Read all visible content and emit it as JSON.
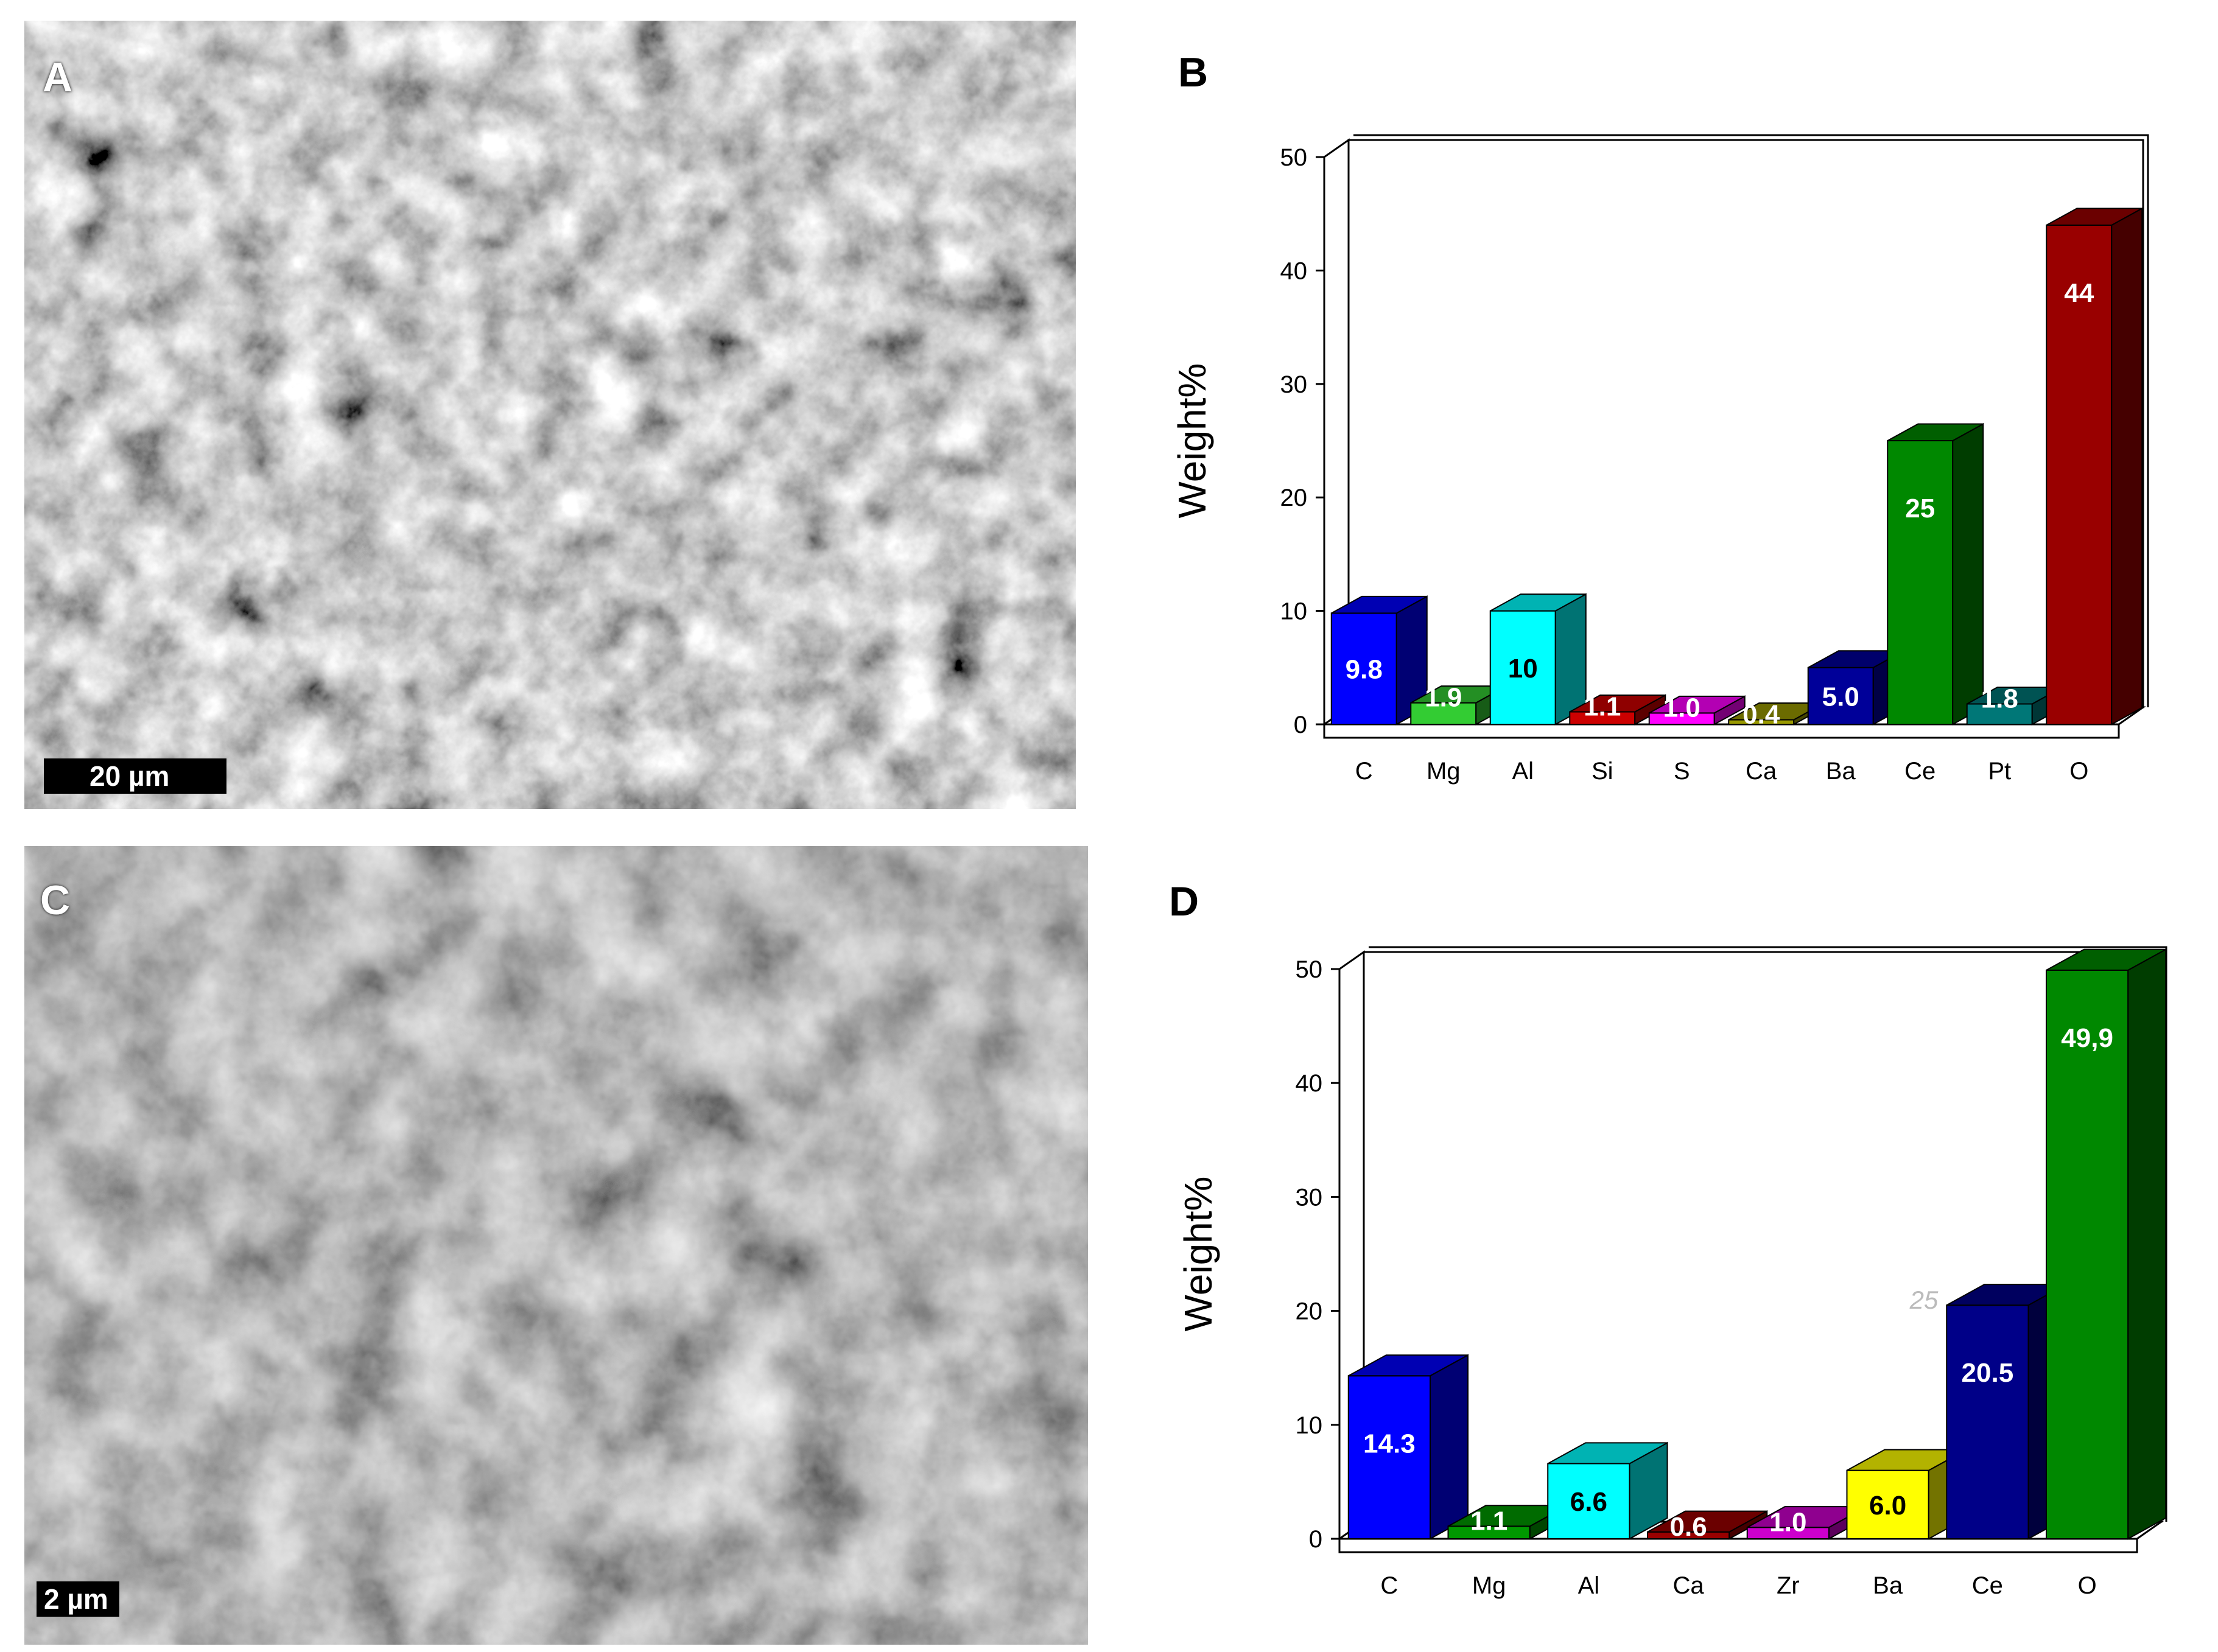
{
  "panels": {
    "A": {
      "label": "A",
      "scale_bar": "20 µm"
    },
    "B": {
      "label": "B"
    },
    "C": {
      "label": "C",
      "scale_bar": "2 µm"
    },
    "D": {
      "label": "D"
    }
  },
  "chart_data": [
    {
      "type": "bar",
      "panel": "B",
      "ylabel": "Weight%",
      "ylim": [
        0,
        50
      ],
      "yticks": [
        "0",
        "10",
        "20",
        "30",
        "40",
        "50"
      ],
      "categories": [
        "C",
        "Mg",
        "Al",
        "Si",
        "S",
        "Ca",
        "Ba",
        "Ce",
        "Pt",
        "O"
      ],
      "values": [
        9.8,
        1.9,
        10,
        1.1,
        1.0,
        0.4,
        5.0,
        25,
        1.8,
        44
      ],
      "data_labels": [
        "9.8",
        "1.9",
        "10",
        "1.1",
        "1.0",
        "0.4",
        "5.0",
        "25",
        "1.8",
        "44"
      ],
      "colors": [
        "#0000ff",
        "#33cc33",
        "#00ffff",
        "#cc0000",
        "#ff00ff",
        "#999900",
        "#000099",
        "#008800",
        "#007777",
        "#990000"
      ],
      "label_colors": [
        "#ffffff",
        "#ffffff",
        "#000000",
        "#ffffff",
        "#ffffff",
        "#ffffff",
        "#ffffff",
        "#ffffff",
        "#ffffff",
        "#ffffff"
      ]
    },
    {
      "type": "bar",
      "panel": "D",
      "ylabel": "Weight%",
      "ylim": [
        0,
        50
      ],
      "yticks": [
        "0",
        "10",
        "20",
        "30",
        "40",
        "50"
      ],
      "categories": [
        "C",
        "Mg",
        "Al",
        "Ca",
        "Zr",
        "Ba",
        "Ce",
        "O"
      ],
      "values": [
        14.3,
        1.1,
        6.6,
        0.6,
        1.0,
        6.0,
        20.5,
        49.9
      ],
      "data_labels": [
        "14.3",
        "1.1",
        "6.6",
        "0.6",
        "1.0",
        "6.0",
        "20.5",
        "49,9"
      ],
      "colors": [
        "#0000ff",
        "#009900",
        "#00ffff",
        "#990000",
        "#cc00cc",
        "#ffff00",
        "#000088",
        "#008800"
      ],
      "label_colors": [
        "#ffffff",
        "#ffffff",
        "#000000",
        "#ffffff",
        "#ffffff",
        "#000000",
        "#ffffff",
        "#ffffff"
      ],
      "annotations": [
        "25"
      ]
    }
  ]
}
